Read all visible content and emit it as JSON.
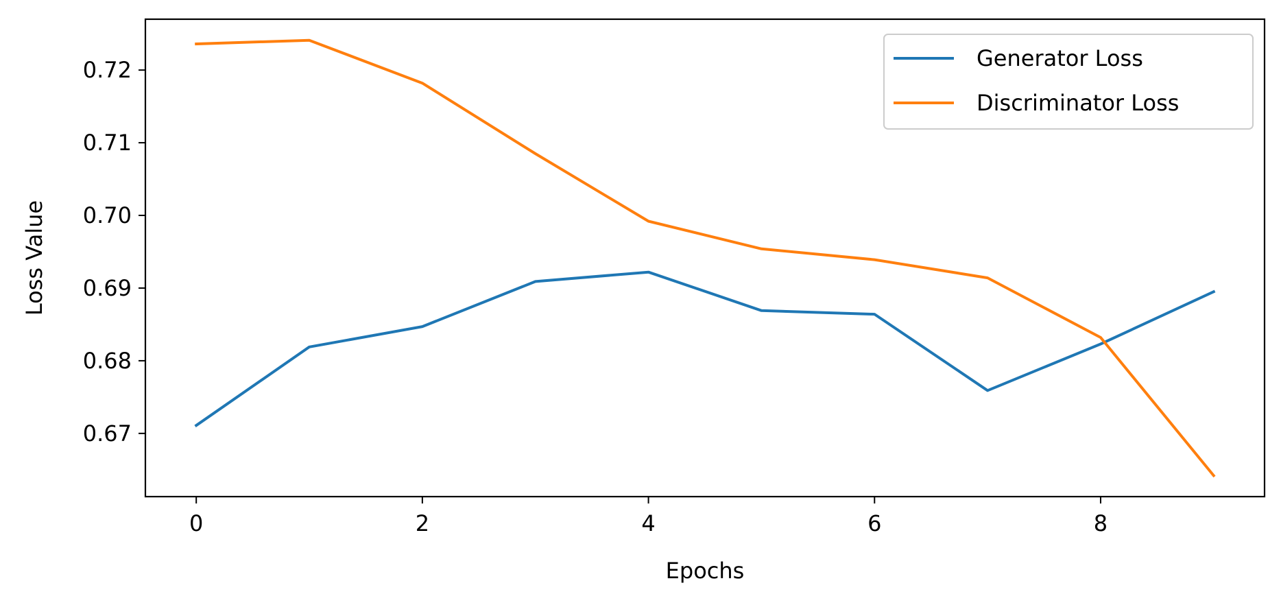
{
  "chart_data": {
    "type": "line",
    "title": "",
    "xlabel": "Epochs",
    "ylabel": "Loss Value",
    "x": [
      0,
      1,
      2,
      3,
      4,
      5,
      6,
      7,
      8,
      9
    ],
    "series": [
      {
        "name": "Generator Loss",
        "color": "#1f77b4",
        "values": [
          0.6711,
          0.6819,
          0.6847,
          0.6909,
          0.6922,
          0.6869,
          0.6864,
          0.6759,
          0.6823,
          0.6895
        ]
      },
      {
        "name": "Discriminator Loss",
        "color": "#ff7f0e",
        "values": [
          0.7236,
          0.7241,
          0.7182,
          0.7085,
          0.6992,
          0.6954,
          0.6939,
          0.6914,
          0.6832,
          0.6642
        ]
      }
    ],
    "xlim": [
      -0.45,
      9.45
    ],
    "ylim": [
      0.6613,
      0.727
    ],
    "xticks": [
      0,
      2,
      4,
      6,
      8
    ],
    "yticks": [
      0.67,
      0.68,
      0.69,
      0.7,
      0.71,
      0.72
    ],
    "ytick_labels": [
      "0.67",
      "0.68",
      "0.69",
      "0.70",
      "0.71",
      "0.72"
    ],
    "grid": false,
    "legend_position": "top-right"
  }
}
